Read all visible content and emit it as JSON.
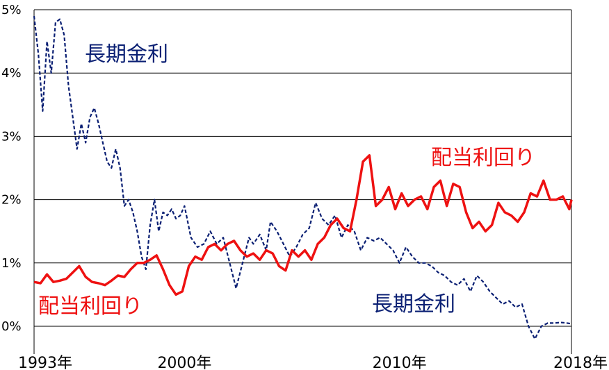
{
  "chart_data": {
    "type": "line",
    "title": "",
    "xlabel": "",
    "ylabel": "",
    "ylim": [
      -0.3,
      5.0
    ],
    "xlim": [
      1993,
      2018
    ],
    "y_ticks": [
      "0%",
      "1%",
      "2%",
      "3%",
      "4%",
      "5%"
    ],
    "y_tick_values": [
      0,
      1,
      2,
      3,
      4,
      5
    ],
    "x_ticks": [
      "1993年",
      "2000年",
      "2010年",
      "2018年"
    ],
    "x_tick_values": [
      1993,
      2000,
      2010,
      2018
    ],
    "grid": "horizontal",
    "series": [
      {
        "name": "長期金利",
        "color": "#0a1f73",
        "style": "dashed",
        "x": [
          1993.0,
          1993.2,
          1993.4,
          1993.6,
          1993.8,
          1994.0,
          1994.2,
          1994.4,
          1994.6,
          1994.8,
          1995.0,
          1995.2,
          1995.4,
          1995.6,
          1995.8,
          1996.0,
          1996.2,
          1996.4,
          1996.6,
          1996.8,
          1997.0,
          1997.2,
          1997.4,
          1997.6,
          1997.8,
          1998.0,
          1998.2,
          1998.4,
          1998.6,
          1998.8,
          1999.0,
          1999.2,
          1999.4,
          1999.6,
          1999.8,
          2000.0,
          2000.3,
          2000.6,
          2000.9,
          2001.2,
          2001.5,
          2001.8,
          2002.1,
          2002.4,
          2002.7,
          2003.0,
          2003.2,
          2003.5,
          2003.8,
          2004.0,
          2004.3,
          2004.6,
          2004.9,
          2005.2,
          2005.5,
          2005.8,
          2006.1,
          2006.4,
          2006.7,
          2007.0,
          2007.3,
          2007.6,
          2007.9,
          2008.2,
          2008.5,
          2008.8,
          2009.1,
          2009.4,
          2009.7,
          2010.0,
          2010.3,
          2010.6,
          2010.9,
          2011.2,
          2011.5,
          2011.8,
          2012.1,
          2012.4,
          2012.7,
          2013.0,
          2013.3,
          2013.6,
          2013.9,
          2014.2,
          2014.5,
          2014.8,
          2015.1,
          2015.4,
          2015.7,
          2016.0,
          2016.3,
          2016.6,
          2016.9,
          2017.2,
          2017.5,
          2017.8,
          2018.0
        ],
        "values": [
          4.9,
          4.3,
          3.4,
          4.5,
          4.0,
          4.8,
          4.85,
          4.6,
          3.8,
          3.3,
          2.8,
          3.2,
          2.9,
          3.3,
          3.45,
          3.2,
          2.9,
          2.6,
          2.5,
          2.8,
          2.5,
          1.9,
          2.0,
          1.8,
          1.5,
          1.1,
          0.9,
          1.6,
          2.0,
          1.5,
          1.8,
          1.75,
          1.85,
          1.7,
          1.75,
          1.9,
          1.4,
          1.25,
          1.3,
          1.5,
          1.3,
          1.4,
          1.0,
          0.6,
          1.0,
          1.4,
          1.3,
          1.45,
          1.2,
          1.65,
          1.5,
          1.3,
          1.1,
          1.25,
          1.45,
          1.55,
          1.95,
          1.7,
          1.6,
          1.75,
          1.4,
          1.6,
          1.5,
          1.2,
          1.4,
          1.35,
          1.4,
          1.3,
          1.2,
          1.0,
          1.25,
          1.1,
          1.0,
          1.0,
          0.95,
          0.85,
          0.8,
          0.7,
          0.65,
          0.75,
          0.55,
          0.8,
          0.7,
          0.55,
          0.45,
          0.35,
          0.4,
          0.3,
          0.35,
          0.0,
          -0.2,
          0.0,
          0.05,
          0.05,
          0.06,
          0.05,
          0.04
        ]
      },
      {
        "name": "配当利回り",
        "color": "#ee1111",
        "style": "solid",
        "x": [
          1993.0,
          1993.3,
          1993.6,
          1993.9,
          1994.2,
          1994.5,
          1994.8,
          1995.1,
          1995.4,
          1995.7,
          1996.0,
          1996.3,
          1996.6,
          1996.9,
          1997.2,
          1997.5,
          1997.8,
          1998.1,
          1998.4,
          1998.7,
          1999.0,
          1999.3,
          1999.6,
          1999.9,
          2000.2,
          2000.5,
          2000.8,
          2001.1,
          2001.4,
          2001.7,
          2002.0,
          2002.3,
          2002.6,
          2002.9,
          2003.2,
          2003.5,
          2003.8,
          2004.1,
          2004.4,
          2004.7,
          2005.0,
          2005.3,
          2005.6,
          2005.9,
          2006.2,
          2006.5,
          2006.8,
          2007.1,
          2007.4,
          2007.7,
          2008.0,
          2008.3,
          2008.6,
          2008.9,
          2009.2,
          2009.5,
          2009.8,
          2010.1,
          2010.4,
          2010.7,
          2011.0,
          2011.3,
          2011.6,
          2011.9,
          2012.2,
          2012.5,
          2012.8,
          2013.1,
          2013.4,
          2013.7,
          2014.0,
          2014.3,
          2014.6,
          2014.9,
          2015.2,
          2015.5,
          2015.8,
          2016.1,
          2016.4,
          2016.7,
          2017.0,
          2017.3,
          2017.6,
          2017.9,
          2018.0
        ],
        "values": [
          0.7,
          0.68,
          0.82,
          0.7,
          0.72,
          0.75,
          0.85,
          0.95,
          0.78,
          0.7,
          0.68,
          0.65,
          0.72,
          0.8,
          0.78,
          0.9,
          1.0,
          1.0,
          1.05,
          1.12,
          0.9,
          0.65,
          0.5,
          0.55,
          0.95,
          1.1,
          1.05,
          1.25,
          1.3,
          1.2,
          1.3,
          1.35,
          1.2,
          1.1,
          1.15,
          1.05,
          1.2,
          1.15,
          0.95,
          0.88,
          1.2,
          1.1,
          1.2,
          1.05,
          1.3,
          1.4,
          1.6,
          1.7,
          1.55,
          1.5,
          2.0,
          2.6,
          2.7,
          1.9,
          2.0,
          2.2,
          1.85,
          2.1,
          1.9,
          2.0,
          2.05,
          1.85,
          2.2,
          2.3,
          1.9,
          2.25,
          2.2,
          1.8,
          1.55,
          1.65,
          1.5,
          1.6,
          1.95,
          1.8,
          1.75,
          1.65,
          1.8,
          2.1,
          2.05,
          2.3,
          2.0,
          2.0,
          2.05,
          1.85,
          2.0
        ]
      }
    ],
    "annotations": [
      {
        "text": "長期金利",
        "color": "#0a1f73"
      },
      {
        "text": "配当利回り",
        "color": "#ee1111"
      },
      {
        "text": "配当利回り",
        "color": "#ee1111"
      },
      {
        "text": "長期金利",
        "color": "#0a1f73"
      }
    ]
  }
}
